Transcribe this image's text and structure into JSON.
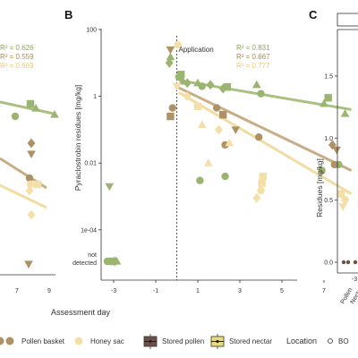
{
  "colors": {
    "pollen": "#9bb571",
    "pollen_basket": "#ae9266",
    "honey_sac": "#f4dfa8",
    "line_pollen": "#a9c07f",
    "line_basket": "#c9ae85",
    "line_honey": "#f1dca3",
    "r2_pollen": "#8aa75e",
    "r2_basket": "#a88a57",
    "r2_honey": "#e8c97c"
  },
  "panel_a": {
    "r2": [
      "R² = 0.626",
      "R² = 0.559",
      "R² = 0.669"
    ],
    "x_ticks": [
      "7",
      "9"
    ]
  },
  "chart_data": [
    {
      "panel": "B",
      "type": "scatter",
      "ylabel": "Pyraclostrobin residues [mg/kg]",
      "yscale": "log",
      "ylim": [
        1e-05,
        100
      ],
      "xlim": [
        -3.6,
        9.3
      ],
      "x_ticks": [
        "-3",
        "-1",
        "1",
        "3",
        "5",
        "7",
        "9"
      ],
      "y_ticks": [
        {
          "value": 100,
          "label": "100"
        },
        {
          "value": 1,
          "label": "1"
        },
        {
          "value": 0.01,
          "label": "0.01"
        },
        {
          "value": 0.0001,
          "label": "1e-04"
        }
      ],
      "not_detected_label": [
        "not",
        "detected"
      ],
      "annotation": "Application",
      "application_x": 0,
      "r2": [
        {
          "series": "pollen",
          "text": "R² = 0.831"
        },
        {
          "series": "pollen_basket",
          "text": "R² = 0.667"
        },
        {
          "series": "honey_sac",
          "text": "R² = 0.777"
        }
      ],
      "fit_lines": [
        {
          "series": "pollen",
          "x0": 0.1,
          "y0": 3,
          "x1": 8.3,
          "y1": 0.4
        },
        {
          "series": "pollen_basket",
          "x0": 0.1,
          "y0": 1.8,
          "x1": 8.3,
          "y1": 0.006
        },
        {
          "series": "honey_sac",
          "x0": 0.1,
          "y0": 1.3,
          "x1": 8.3,
          "y1": 0.0012
        }
      ],
      "points": [
        {
          "series": "pollen",
          "shape": "triangle-down",
          "x": -3.2,
          "y": 0.002
        },
        {
          "series": "pollen",
          "shape": "circle",
          "x": -3.3,
          "y": "nd"
        },
        {
          "series": "pollen",
          "shape": "square",
          "x": -3.05,
          "y": "nd"
        },
        {
          "series": "pollen",
          "shape": "triangle",
          "x": -2.85,
          "y": "nd"
        },
        {
          "series": "pollen",
          "shape": "diamond",
          "x": -2.95,
          "y": "nd"
        },
        {
          "series": "pollen",
          "shape": "triangle",
          "x": -0.3,
          "y": 15
        },
        {
          "series": "pollen",
          "shape": "diamond",
          "x": -0.35,
          "y": 10
        },
        {
          "series": "pollen",
          "shape": "circle",
          "x": 0.1,
          "y": 3.8
        },
        {
          "series": "pollen",
          "shape": "square",
          "x": 0.2,
          "y": 4.5
        },
        {
          "series": "pollen",
          "shape": "triangle",
          "x": 0.3,
          "y": 2.8
        },
        {
          "series": "pollen",
          "shape": "diamond",
          "x": 0.5,
          "y": 2.5
        },
        {
          "series": "pollen",
          "shape": "triangle",
          "x": 1.0,
          "y": 2.5
        },
        {
          "series": "pollen",
          "shape": "circle",
          "x": 1.2,
          "y": 2.0
        },
        {
          "series": "pollen",
          "shape": "diamond",
          "x": 1.6,
          "y": 2.2
        },
        {
          "series": "pollen",
          "shape": "diamond",
          "x": 2.2,
          "y": 1.7
        },
        {
          "series": "pollen",
          "shape": "square",
          "x": 2.4,
          "y": 1.9
        },
        {
          "series": "pollen",
          "shape": "triangle",
          "x": 3.8,
          "y": 2.2
        },
        {
          "series": "pollen",
          "shape": "circle",
          "x": 4.0,
          "y": 1.2
        },
        {
          "series": "pollen",
          "shape": "triangle",
          "x": 7.0,
          "y": 0.6
        },
        {
          "series": "pollen",
          "shape": "square",
          "x": 7.2,
          "y": 0.9
        },
        {
          "series": "pollen",
          "shape": "triangle",
          "x": 8.0,
          "y": 0.3
        },
        {
          "series": "pollen",
          "shape": "circle",
          "x": 1.1,
          "y": 0.003
        },
        {
          "series": "pollen",
          "shape": "circle",
          "x": 2.3,
          "y": 0.004
        },
        {
          "series": "pollen",
          "shape": "circle",
          "x": 6.9,
          "y": 0.006
        },
        {
          "series": "pollen",
          "shape": "circle",
          "x": 7.7,
          "y": 0.009
        },
        {
          "series": "pollen_basket",
          "shape": "triangle-down",
          "x": -0.3,
          "y": 25
        },
        {
          "series": "pollen_basket",
          "shape": "circle",
          "x": -0.2,
          "y": 0.45
        },
        {
          "series": "pollen_basket",
          "shape": "square",
          "x": -0.3,
          "y": 0.25
        },
        {
          "series": "pollen_basket",
          "shape": "circle",
          "x": 1.9,
          "y": 0.45
        },
        {
          "series": "pollen_basket",
          "shape": "square",
          "x": 2.2,
          "y": 0.28
        },
        {
          "series": "pollen_basket",
          "shape": "triangle-down",
          "x": 2.8,
          "y": 0.1
        },
        {
          "series": "pollen_basket",
          "shape": "circle",
          "x": 2.3,
          "y": 0.035
        },
        {
          "series": "pollen_basket",
          "shape": "circle",
          "x": 3.9,
          "y": 0.06
        },
        {
          "series": "pollen_basket",
          "shape": "diamond",
          "x": 7.4,
          "y": 0.035
        },
        {
          "series": "pollen_basket",
          "shape": "triangle-down",
          "x": 7.6,
          "y": 0.025
        },
        {
          "series": "pollen_basket",
          "shape": "circle",
          "x": 7.5,
          "y": 0.009
        },
        {
          "series": "honey_sac",
          "shape": "circle",
          "x": 0.05,
          "y": 35
        },
        {
          "series": "honey_sac",
          "shape": "triangle-down",
          "x": 0.0,
          "y": 2.0
        },
        {
          "series": "honey_sac",
          "shape": "diamond",
          "x": 0.5,
          "y": 1.0
        },
        {
          "series": "honey_sac",
          "shape": "square",
          "x": 1.0,
          "y": 0.5
        },
        {
          "series": "honey_sac",
          "shape": "triangle",
          "x": 1.2,
          "y": 0.14
        },
        {
          "series": "honey_sac",
          "shape": "diamond",
          "x": 2.0,
          "y": 0.1
        },
        {
          "series": "honey_sac",
          "shape": "triangle",
          "x": 2.5,
          "y": 0.04
        },
        {
          "series": "honey_sac",
          "shape": "triangle",
          "x": 1.5,
          "y": 0.01
        },
        {
          "series": "honey_sac",
          "shape": "square",
          "x": 4.1,
          "y": 0.004
        },
        {
          "series": "honey_sac",
          "shape": "square",
          "x": 4.05,
          "y": 0.0025
        },
        {
          "series": "honey_sac",
          "shape": "circle",
          "x": 4.0,
          "y": 0.0015
        },
        {
          "series": "honey_sac",
          "shape": "diamond",
          "x": 3.8,
          "y": 0.0009
        },
        {
          "series": "honey_sac",
          "shape": "square",
          "x": 7.8,
          "y": 0.0012
        },
        {
          "series": "honey_sac",
          "shape": "circle",
          "x": 8.0,
          "y": 0.0008
        },
        {
          "series": "honey_sac",
          "shape": "triangle-down",
          "x": 7.9,
          "y": 0.0005
        }
      ]
    },
    {
      "panel": "C",
      "type": "box",
      "ylabel": "Residues [mg/kg]",
      "ylim": [
        0,
        1.9
      ],
      "y_ticks": [
        "0.0",
        "0.5",
        "1.0",
        "1.5"
      ],
      "x_ticks": [
        "Pollen",
        "Necta"
      ],
      "x_tick_partial": "-3"
    }
  ],
  "x_axis_title": "Assessment day",
  "legend": {
    "items": [
      {
        "label": "Pollen basket",
        "kind": "circle",
        "series": "pollen_basket"
      },
      {
        "label": "Honey sac",
        "kind": "circle",
        "series": "honey_sac"
      },
      {
        "label": "Stored pollen",
        "kind": "box",
        "fill": "#6b5048"
      },
      {
        "label": "Stored nectar",
        "kind": "box",
        "fill": "#e9dc7a"
      }
    ],
    "location_title": "Location",
    "location_item": "BO"
  },
  "panel_letters": {
    "b": "B",
    "c": "C"
  }
}
